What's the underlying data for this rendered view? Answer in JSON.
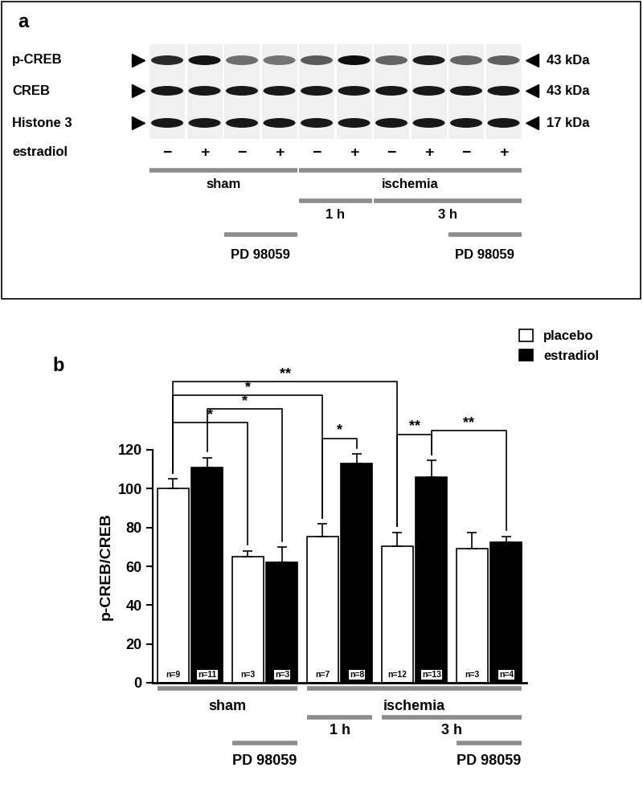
{
  "blot": {
    "label": "a",
    "rows": [
      {
        "name": "p-CREB",
        "size": "43 kDa"
      },
      {
        "name": "CREB",
        "size": "43 kDa"
      },
      {
        "name": "Histone 3",
        "size": "17 kDa"
      }
    ],
    "treatment": "estradiol",
    "lanes": [
      "−",
      "+",
      "−",
      "+",
      "−",
      "+",
      "−",
      "+",
      "−",
      "+"
    ]
  },
  "groups": [
    {
      "label": "sham",
      "bars": [
        0,
        3
      ]
    },
    {
      "label": "ischemia",
      "bars": [
        4,
        9
      ]
    },
    {
      "label": "1 h",
      "bars": [
        4,
        5
      ]
    },
    {
      "label": "3 h",
      "bars": [
        6,
        9
      ]
    },
    {
      "label": "PD 98059",
      "bars": [
        2,
        3
      ]
    },
    {
      "label": "PD 98059",
      "bars": [
        8,
        9
      ]
    }
  ],
  "chart_data": {
    "type": "bar",
    "label": "b",
    "y_label": "p-CREB/CREB",
    "categories": [
      null,
      null,
      null,
      null,
      null
    ],
    "ylim": [
      0,
      120
    ],
    "yticks": [
      0,
      20,
      40,
      60,
      80,
      100,
      120
    ],
    "legend": "upper right",
    "series": [
      {
        "name": "placebo",
        "color": "#ffffff",
        "values": [
          100,
          65,
          75.5,
          70.5,
          69
        ],
        "errors": [
          5,
          3,
          6.5,
          7,
          8.5
        ],
        "n_labels": [
          "n=9",
          "n=3",
          "n=7",
          "n=12",
          "n=3"
        ]
      },
      {
        "name": "estradiol",
        "color": "#000000",
        "values": [
          111,
          62,
          113,
          106,
          72.5
        ],
        "errors": [
          5,
          8,
          5,
          8.5,
          3
        ],
        "n_labels": [
          "n=11",
          "n=3",
          "n=8",
          "n=13",
          "n=4"
        ]
      }
    ],
    "significance": [
      {
        "bars": [
          0,
          6
        ],
        "label": "**"
      },
      {
        "bars": [
          0,
          4
        ],
        "label": "*"
      },
      {
        "bars": [
          1,
          3
        ],
        "label": "*"
      },
      {
        "bars": [
          0,
          2
        ],
        "label": "*"
      },
      {
        "bars": [
          4,
          5
        ],
        "label": "*"
      },
      {
        "bars": [
          6,
          7
        ],
        "label": "**"
      },
      {
        "bars": [
          7,
          9
        ],
        "label": "**"
      }
    ]
  }
}
